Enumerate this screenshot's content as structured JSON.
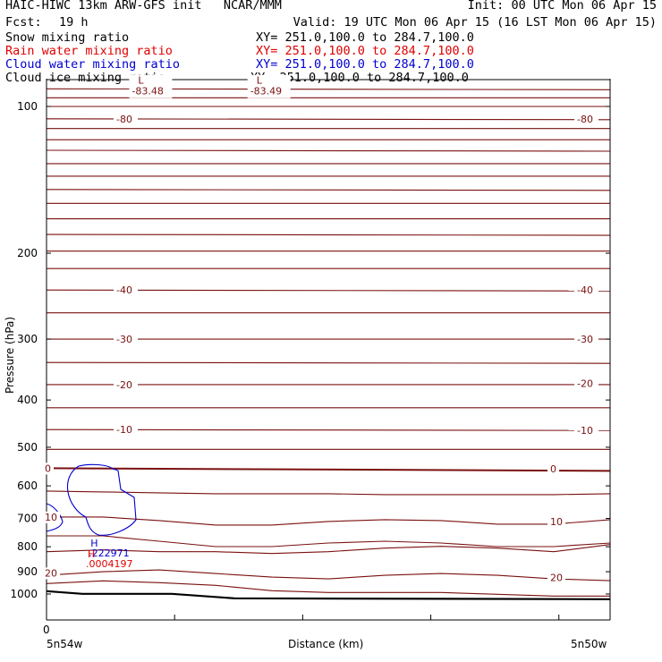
{
  "header": {
    "line1_left": "HAIC-HIWC 13km ARW-GFS init   NCAR/MMM",
    "line1_right": "Init: 00 UTC Mon 06 Apr 15",
    "fcst_label": "Fcst:",
    "fcst_value": "19 h",
    "valid": "Valid: 19 UTC Mon 06 Apr 15 (16 LST Mon 06 Apr 15)",
    "fields": [
      {
        "name": "Snow mixing ratio",
        "xy": "XY= 251.0,100.0 to 284.7,100.0",
        "color": "#000000"
      },
      {
        "name": "Rain water mixing ratio",
        "xy": "XY= 251.0,100.0 to 284.7,100.0",
        "color": "#e00000"
      },
      {
        "name": "Cloud water mixing ratio",
        "xy": "XY= 251.0,100.0 to 284.7,100.0",
        "color": "#0000d0"
      },
      {
        "name": "Cloud ice mixing ratio",
        "xy": "XY= 251.0,100.0 to 284.7,100.0",
        "color": "#000000"
      }
    ]
  },
  "chart_data": {
    "type": "line",
    "title": "",
    "xlabel": "Distance (km)",
    "ylabel": "Pressure (hPa)",
    "y_scale": "log",
    "ylim": [
      1050,
      80
    ],
    "y_ticks": [
      100,
      200,
      300,
      400,
      500,
      600,
      700,
      800,
      900,
      1000
    ],
    "x_start_label": "0",
    "x_left_label": "5n54w",
    "x_right_label": "5n50w",
    "temperature_labels": [
      {
        "text": "-80",
        "p": 106,
        "pos": "left"
      },
      {
        "text": "-80",
        "p": 106,
        "pos": "right"
      },
      {
        "text": "-40",
        "p": 238,
        "pos": "left"
      },
      {
        "text": "-40",
        "p": 238,
        "pos": "right"
      },
      {
        "text": "-30",
        "p": 300,
        "pos": "left"
      },
      {
        "text": "-30",
        "p": 300,
        "pos": "right"
      },
      {
        "text": "-20",
        "p": 372,
        "pos": "left"
      },
      {
        "text": "-20",
        "p": 370,
        "pos": "right"
      },
      {
        "text": "-10",
        "p": 460,
        "pos": "left"
      },
      {
        "text": "-10",
        "p": 462,
        "pos": "right"
      },
      {
        "text": "0",
        "p": 552,
        "pos": "left"
      },
      {
        "text": "0",
        "p": 554,
        "pos": "right"
      },
      {
        "text": "10",
        "p": 695,
        "pos": "left"
      },
      {
        "text": "10",
        "p": 710,
        "pos": "right"
      },
      {
        "text": "20",
        "p": 905,
        "pos": "left"
      },
      {
        "text": "20",
        "p": 925,
        "pos": "right"
      }
    ],
    "lows": [
      {
        "label": "L",
        "value": "-83.48",
        "frac": 0.08,
        "p": 84
      },
      {
        "label": "L",
        "value": "-83.49",
        "frac": 0.29,
        "p": 84
      }
    ],
    "highs": [
      {
        "label": "H",
        "value": ".222971",
        "frac": 0.04,
        "p": 820,
        "color": "#0000d0"
      },
      {
        "label": "H",
        "value": ".0004197",
        "frac": 0.035,
        "p": 862,
        "color": "#e00000"
      }
    ]
  }
}
